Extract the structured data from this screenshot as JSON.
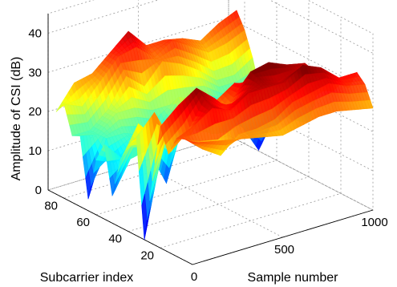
{
  "chart_data": {
    "type": "surface",
    "title": "",
    "xlabel": "Subcarrier index",
    "ylabel": "Sample number",
    "zlabel": "Amplitude of CSI (dB)",
    "x_ticks": [
      "20",
      "40",
      "60",
      "80"
    ],
    "y_ticks": [
      "0",
      "500",
      "1000"
    ],
    "z_ticks": [
      "0",
      "10",
      "20",
      "30",
      "40"
    ],
    "xlim": [
      0,
      90
    ],
    "ylim": [
      0,
      1000
    ],
    "zlim": [
      0,
      45
    ],
    "grid": true,
    "colormap": "jet",
    "series": [
      {
        "x": 0,
        "y": [
          0,
          100,
          200,
          300,
          400,
          500,
          600,
          700,
          800,
          900,
          1000
        ],
        "z": [
          31,
          30,
          29,
          28,
          27,
          26,
          27,
          28,
          28,
          27,
          26
        ]
      },
      {
        "x": 5,
        "y": [
          0,
          100,
          200,
          300,
          400,
          500,
          600,
          700,
          800,
          900,
          1000
        ],
        "z": [
          31,
          27,
          24,
          28,
          28,
          29,
          32,
          33,
          34,
          32,
          31
        ]
      },
      {
        "x": 10,
        "y": [
          0,
          100,
          200,
          300,
          400,
          500,
          600,
          700,
          800,
          900,
          1000
        ],
        "z": [
          30,
          32,
          35,
          33,
          36,
          36,
          36,
          39,
          37,
          33,
          33
        ]
      },
      {
        "x": 15,
        "y": [
          0,
          100,
          200,
          300,
          400,
          500,
          600,
          700,
          800,
          900,
          1000
        ],
        "z": [
          25,
          29,
          36,
          32,
          34,
          37,
          35,
          36,
          34,
          31,
          28
        ]
      },
      {
        "x": 20,
        "y": [
          0,
          100,
          200,
          300,
          400,
          500,
          600,
          700,
          800,
          900,
          1000
        ],
        "z": [
          31,
          35,
          38,
          34,
          29,
          38,
          39,
          37,
          36,
          31,
          28
        ]
      },
      {
        "x": 25,
        "y": [
          0,
          100,
          200,
          300,
          400,
          500,
          600,
          700,
          800,
          900,
          1000
        ],
        "z": [
          16,
          29,
          24,
          31,
          28,
          34,
          36,
          31,
          33,
          27,
          25
        ]
      },
      {
        "x": 30,
        "y": [
          0,
          100,
          200,
          300,
          400,
          500,
          600,
          700,
          800,
          900,
          1000
        ],
        "z": [
          0,
          22,
          28,
          26,
          30,
          33,
          28,
          30,
          28,
          21,
          26
        ]
      },
      {
        "x": 35,
        "y": [
          0,
          100,
          200,
          300,
          400,
          500,
          600,
          700,
          800,
          900,
          1000
        ],
        "z": [
          25,
          30,
          21,
          31,
          26,
          24,
          25,
          29,
          26,
          24,
          22
        ]
      },
      {
        "x": 40,
        "y": [
          0,
          100,
          200,
          300,
          400,
          500,
          600,
          700,
          800,
          900,
          1000
        ],
        "z": [
          22,
          21,
          20,
          23,
          20,
          18,
          27,
          25,
          21,
          16,
          14
        ]
      },
      {
        "x": 45,
        "y": [
          0,
          100,
          200,
          300,
          400,
          500,
          600,
          700,
          800,
          900,
          1000
        ],
        "z": [
          17,
          25,
          20,
          19,
          25,
          17,
          16,
          20,
          19,
          17,
          13
        ]
      },
      {
        "x": 50,
        "y": [
          0,
          100,
          200,
          300,
          400,
          500,
          600,
          700,
          800,
          900,
          1000
        ],
        "z": [
          7,
          15,
          16,
          6,
          21,
          17,
          18,
          18,
          17,
          12,
          16
        ]
      },
      {
        "x": 55,
        "y": [
          0,
          100,
          200,
          300,
          400,
          500,
          600,
          700,
          800,
          900,
          1000
        ],
        "z": [
          19,
          14,
          20,
          17,
          17,
          20,
          15,
          17,
          14,
          12,
          14
        ]
      },
      {
        "x": 60,
        "y": [
          0,
          100,
          200,
          300,
          400,
          500,
          600,
          700,
          800,
          900,
          1000
        ],
        "z": [
          14,
          12,
          16,
          14,
          7,
          18,
          19,
          12,
          12,
          4,
          12
        ]
      },
      {
        "x": 65,
        "y": [
          0,
          100,
          200,
          300,
          400,
          500,
          600,
          700,
          800,
          900,
          1000
        ],
        "z": [
          3,
          17,
          17,
          15,
          13,
          22,
          20,
          12,
          11,
          13,
          11
        ]
      },
      {
        "x": 70,
        "y": [
          0,
          100,
          200,
          300,
          400,
          500,
          600,
          700,
          800,
          900,
          1000
        ],
        "z": [
          18,
          17,
          21,
          21,
          19,
          19,
          19,
          19,
          16,
          16,
          15
        ]
      },
      {
        "x": 75,
        "y": [
          0,
          100,
          200,
          300,
          400,
          500,
          600,
          700,
          800,
          900,
          1000
        ],
        "z": [
          17,
          17,
          21,
          28,
          24,
          29,
          27,
          24,
          20,
          20,
          23
        ]
      },
      {
        "x": 80,
        "y": [
          0,
          100,
          200,
          300,
          400,
          500,
          600,
          700,
          800,
          900,
          1000
        ],
        "z": [
          24,
          22,
          27,
          32,
          33,
          29,
          32,
          29,
          26,
          27,
          29
        ]
      },
      {
        "x": 85,
        "y": [
          0,
          100,
          200,
          300,
          400,
          500,
          600,
          700,
          800,
          900,
          1000
        ],
        "z": [
          21,
          27,
          28,
          32,
          36,
          31,
          31,
          30,
          28,
          31,
          33
        ]
      }
    ]
  }
}
